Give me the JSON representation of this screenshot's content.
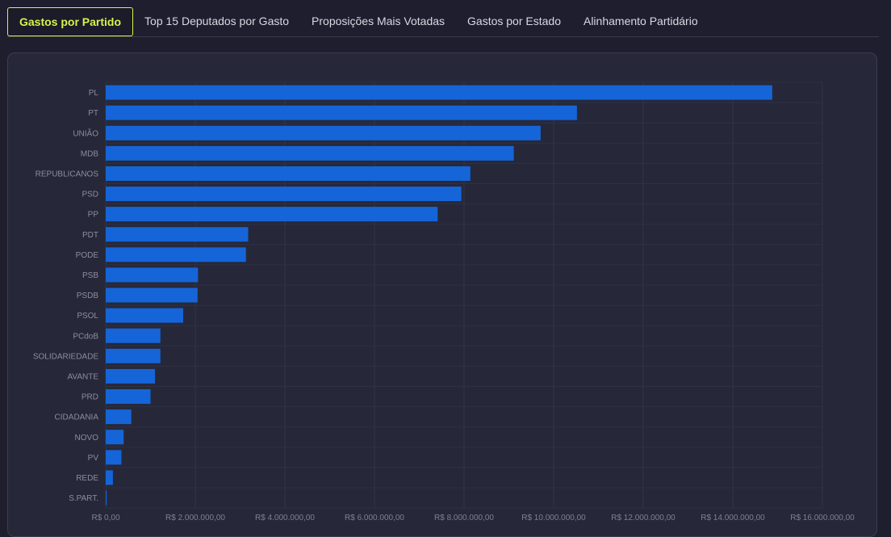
{
  "tabs": [
    {
      "label": "Gastos por Partido",
      "active": true
    },
    {
      "label": "Top 15 Deputados por Gasto",
      "active": false
    },
    {
      "label": "Proposições Mais Votadas",
      "active": false
    },
    {
      "label": "Gastos por Estado",
      "active": false
    },
    {
      "label": "Alinhamento Partidário",
      "active": false
    }
  ],
  "chart_data": {
    "type": "bar",
    "orientation": "horizontal",
    "categories": [
      "PL",
      "PT",
      "UNIÃO",
      "MDB",
      "REPUBLICANOS",
      "PSD",
      "PP",
      "PDT",
      "PODE",
      "PSB",
      "PSDB",
      "PSOL",
      "PCdoB",
      "SOLIDARIEDADE",
      "AVANTE",
      "PRD",
      "CIDADANIA",
      "NOVO",
      "PV",
      "REDE",
      "S.PART."
    ],
    "values": [
      14880000,
      10520000,
      9710000,
      9110000,
      8140000,
      7940000,
      7410000,
      3180000,
      3130000,
      2060000,
      2050000,
      1730000,
      1220000,
      1220000,
      1100000,
      1000000,
      570000,
      400000,
      350000,
      160000,
      20000
    ],
    "xlim": [
      0,
      16000000
    ],
    "xticks": [
      0,
      2000000,
      4000000,
      6000000,
      8000000,
      10000000,
      12000000,
      14000000,
      16000000
    ],
    "xtick_labels": [
      "R$ 0,00",
      "R$ 2.000.000,00",
      "R$ 4.000.000,00",
      "R$ 6.000.000,00",
      "R$ 8.000.000,00",
      "R$ 10.000.000,00",
      "R$ 12.000.000,00",
      "R$ 14.000.000,00",
      "R$ 16.000.000,00"
    ],
    "bar_color": "#1565d8",
    "grid": true
  }
}
